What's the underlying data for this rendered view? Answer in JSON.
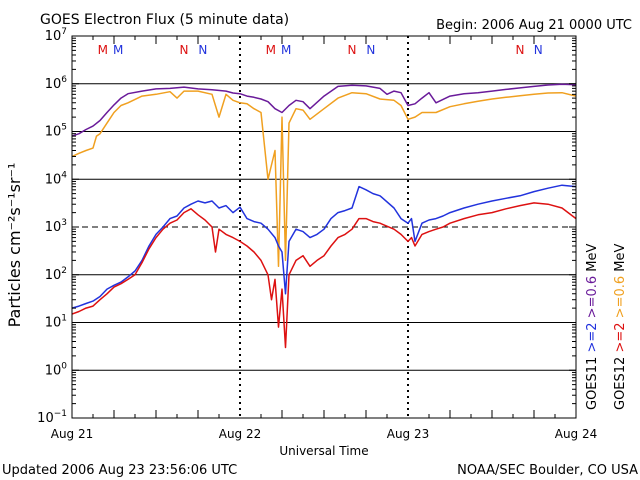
{
  "header": {
    "title": "GOES Electron Flux (5 minute data)",
    "begin": "Begin: 2006 Aug 21 0000 UTC"
  },
  "footer": {
    "updated": "Updated 2006 Aug 23 23:56:06 UTC",
    "credit": "NOAA/SEC Boulder, CO USA"
  },
  "chart_data": {
    "type": "line",
    "title": "GOES Electron Flux (5 minute data)",
    "xlabel": "Universal Time",
    "ylabel": "Particles cm⁻²s⁻¹sr⁻¹",
    "y_scale": "log",
    "ylim": [
      0.1,
      10000000
    ],
    "xlim_hours": [
      0,
      72
    ],
    "x_ticks": [
      {
        "hour": 0,
        "label": "Aug 21"
      },
      {
        "hour": 24,
        "label": "Aug 22"
      },
      {
        "hour": 48,
        "label": "Aug 23"
      },
      {
        "hour": 72,
        "label": "Aug 24"
      }
    ],
    "y_ticks": [
      {
        "exp": -1,
        "value": 0.1
      },
      {
        "exp": 0,
        "value": 1
      },
      {
        "exp": 1,
        "value": 10
      },
      {
        "exp": 2,
        "value": 100
      },
      {
        "exp": 3,
        "value": 1000
      },
      {
        "exp": 4,
        "value": 10000
      },
      {
        "exp": 5,
        "value": 100000
      },
      {
        "exp": 6,
        "value": 1000000
      },
      {
        "exp": 7,
        "value": 10000000
      }
    ],
    "threshold_line": 1000,
    "grid": true,
    "legend_right": [
      {
        "satellite": "GOES11",
        "low": ">=2",
        "high": ">=0.6",
        "unit": "MeV",
        "low_color": "#2233dd",
        "high_color": "#6a1b9a"
      },
      {
        "satellite": "GOES12",
        "low": ">=2",
        "high": ">=0.6",
        "unit": "MeV",
        "low_color": "#dd1111",
        "high_color": "#f0a020"
      }
    ],
    "markers": [
      {
        "hour": 4.4,
        "label": "M",
        "color": "#dd1111"
      },
      {
        "hour": 6.6,
        "label": "M",
        "color": "#2233dd"
      },
      {
        "hour": 16.0,
        "label": "N",
        "color": "#dd1111"
      },
      {
        "hour": 18.7,
        "label": "N",
        "color": "#2233dd"
      },
      {
        "hour": 28.4,
        "label": "M",
        "color": "#dd1111"
      },
      {
        "hour": 30.6,
        "label": "M",
        "color": "#2233dd"
      },
      {
        "hour": 40.0,
        "label": "N",
        "color": "#dd1111"
      },
      {
        "hour": 42.7,
        "label": "N",
        "color": "#2233dd"
      },
      {
        "hour": 64.0,
        "label": "N",
        "color": "#dd1111"
      },
      {
        "hour": 66.6,
        "label": "N",
        "color": "#2233dd"
      }
    ],
    "series": [
      {
        "name": "GOES11 >=0.6 MeV",
        "color": "#6a1b9a",
        "x": [
          0,
          1,
          2,
          3,
          4,
          5,
          6,
          7,
          8,
          10,
          12,
          14,
          16,
          18,
          20,
          22,
          23,
          24,
          25,
          26,
          27,
          28,
          29,
          30,
          31,
          32,
          33,
          34,
          36,
          38,
          40,
          42,
          44,
          45,
          46,
          47,
          48,
          49,
          50,
          51,
          52,
          54,
          56,
          58,
          60,
          62,
          64,
          66,
          68,
          70,
          72
        ],
        "y": [
          80000,
          90000,
          110000,
          130000,
          170000,
          250000,
          360000,
          500000,
          620000,
          700000,
          780000,
          800000,
          850000,
          780000,
          750000,
          700000,
          640000,
          620000,
          550000,
          520000,
          480000,
          420000,
          300000,
          250000,
          350000,
          450000,
          420000,
          300000,
          550000,
          880000,
          930000,
          900000,
          800000,
          600000,
          700000,
          650000,
          350000,
          380000,
          500000,
          650000,
          400000,
          550000,
          620000,
          650000,
          700000,
          760000,
          820000,
          880000,
          940000,
          980000,
          950000
        ]
      },
      {
        "name": "GOES12 >=0.6 MeV",
        "color": "#f0a020",
        "x": [
          0,
          1,
          2,
          3,
          3.5,
          4,
          5,
          6,
          7,
          8,
          10,
          12,
          14,
          15,
          16,
          18,
          20,
          21,
          22,
          23,
          24,
          25,
          26,
          27,
          28,
          29,
          29.5,
          30,
          30.5,
          31,
          32,
          33,
          34,
          36,
          38,
          40,
          42,
          44,
          46,
          47,
          48,
          49,
          50,
          52,
          54,
          56,
          58,
          60,
          62,
          64,
          66,
          68,
          70,
          72
        ],
        "y": [
          30000,
          35000,
          40000,
          45000,
          80000,
          90000,
          150000,
          250000,
          350000,
          400000,
          550000,
          600000,
          680000,
          500000,
          700000,
          700000,
          600000,
          200000,
          600000,
          450000,
          400000,
          380000,
          300000,
          250000,
          10000,
          40000,
          150,
          200000,
          200,
          150000,
          300000,
          280000,
          180000,
          300000,
          500000,
          650000,
          620000,
          480000,
          450000,
          350000,
          180000,
          200000,
          250000,
          250000,
          330000,
          380000,
          430000,
          480000,
          520000,
          560000,
          600000,
          640000,
          650000,
          550000
        ]
      },
      {
        "name": "GOES11 >=2 MeV",
        "color": "#2233dd",
        "x": [
          0,
          1,
          2,
          3,
          4,
          5,
          6,
          7,
          8,
          9,
          10,
          11,
          12,
          13,
          14,
          15,
          16,
          17,
          18,
          19,
          20,
          21,
          22,
          23,
          24,
          25,
          26,
          27,
          28,
          29,
          29.5,
          30,
          30.5,
          31,
          32,
          33,
          34,
          35,
          36,
          37,
          38,
          39,
          40,
          41,
          42,
          43,
          44,
          46,
          47,
          48,
          48.5,
          49,
          50,
          51,
          52,
          53,
          54,
          56,
          58,
          60,
          62,
          64,
          66,
          68,
          70,
          72
        ],
        "y": [
          20,
          22,
          25,
          28,
          35,
          50,
          60,
          70,
          90,
          120,
          200,
          400,
          700,
          1000,
          1500,
          1700,
          2500,
          3000,
          3500,
          3200,
          3500,
          2500,
          2800,
          2000,
          2600,
          1500,
          1300,
          1200,
          900,
          600,
          400,
          300,
          40,
          500,
          900,
          800,
          600,
          700,
          900,
          1500,
          2000,
          2200,
          2500,
          7000,
          6000,
          5000,
          4500,
          2500,
          1500,
          1200,
          1500,
          500,
          1200,
          1400,
          1500,
          1700,
          2000,
          2500,
          3000,
          3500,
          4000,
          4500,
          5500,
          6500,
          7500,
          7000
        ]
      },
      {
        "name": "GOES12 >=2 MeV",
        "color": "#dd1111",
        "x": [
          0,
          1,
          2,
          3,
          4,
          5,
          6,
          7,
          8,
          9,
          10,
          11,
          12,
          13,
          14,
          15,
          16,
          17,
          18,
          19,
          20,
          20.5,
          21,
          22,
          23,
          24,
          25,
          26,
          27,
          28,
          28.5,
          29,
          29.5,
          30,
          30.5,
          31,
          32,
          33,
          34,
          35,
          36,
          37,
          38,
          39,
          40,
          41,
          42,
          43,
          44,
          46,
          47,
          48,
          48.5,
          49,
          50,
          51,
          52,
          53,
          54,
          56,
          58,
          60,
          62,
          64,
          66,
          68,
          70,
          72
        ],
        "y": [
          15,
          17,
          20,
          22,
          30,
          40,
          55,
          65,
          80,
          100,
          180,
          350,
          600,
          900,
          1200,
          1400,
          2000,
          2400,
          1800,
          1400,
          1000,
          300,
          900,
          700,
          600,
          500,
          400,
          300,
          200,
          100,
          30,
          80,
          8,
          50,
          3,
          100,
          200,
          250,
          150,
          200,
          250,
          400,
          600,
          700,
          900,
          1500,
          1500,
          1300,
          1200,
          900,
          700,
          500,
          600,
          400,
          700,
          800,
          900,
          1000,
          1200,
          1500,
          1800,
          2000,
          2400,
          2800,
          3200,
          3000,
          2500,
          1500
        ]
      }
    ]
  }
}
